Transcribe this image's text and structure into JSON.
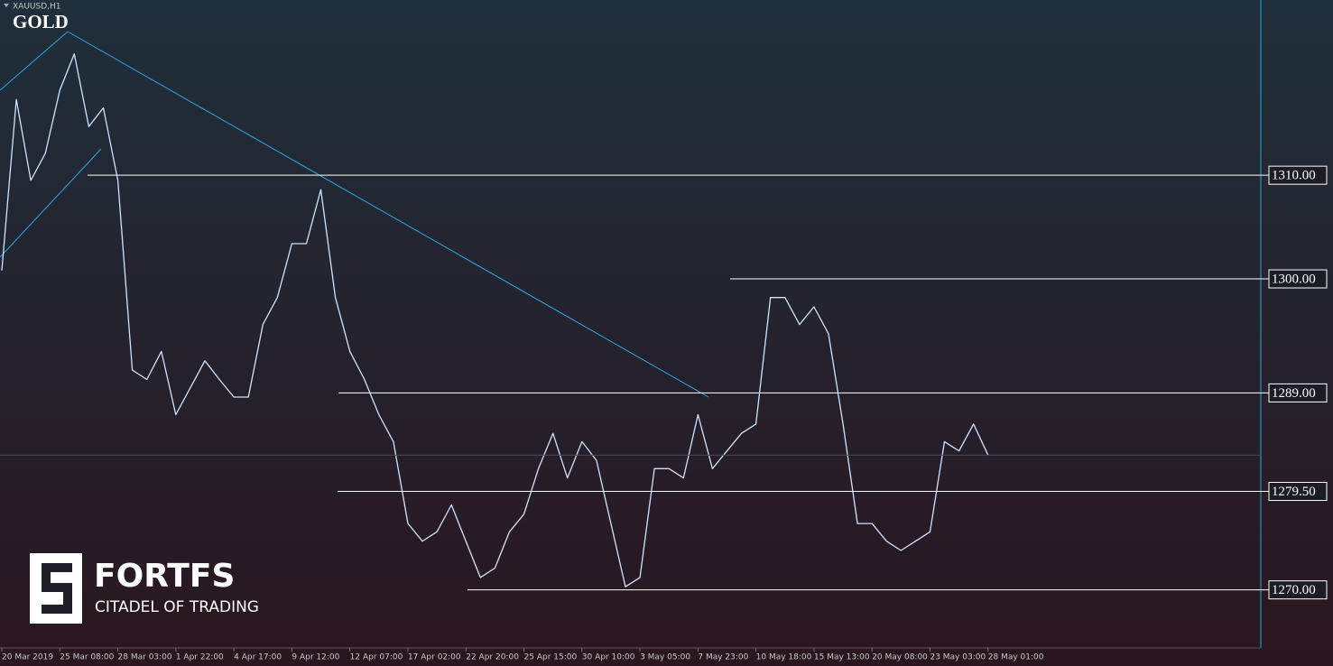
{
  "chart_data": {
    "type": "line",
    "symbol": "XAUUSD,H1",
    "title": "GOLD",
    "brand": "FORTFS",
    "brand_tagline": "CITADEL OF TRADING",
    "categories": [
      "20 Mar 2019",
      null,
      null,
      null,
      "25 Mar 08:00",
      null,
      null,
      null,
      "28 Mar 03:00",
      null,
      null,
      null,
      "1 Apr 22:00",
      null,
      null,
      null,
      "4 Apr 17:00",
      null,
      null,
      null,
      "9 Apr 12:00",
      null,
      null,
      null,
      "12 Apr 07:00",
      null,
      null,
      null,
      "17 Apr 02:00",
      null,
      null,
      null,
      "22 Apr 20:00",
      null,
      null,
      null,
      "25 Apr 15:00",
      null,
      null,
      null,
      "30 Apr 10:00",
      null,
      null,
      null,
      "3 May 05:00",
      null,
      null,
      null,
      "7 May 23:00",
      null,
      null,
      null,
      "10 May 18:00",
      null,
      null,
      null,
      "15 May 13:00",
      null,
      null,
      null,
      "20 May 08:00",
      null,
      null,
      null,
      "23 May 03:00",
      null,
      null,
      null,
      "28 May 01:00"
    ],
    "series": [
      {
        "name": "XAUUSD",
        "color": "#cfe4ff",
        "values": [
          1300.8,
          1317.3,
          1309.5,
          1312.1,
          1318.2,
          1321.7,
          1314.7,
          1316.5,
          1309.5,
          1291.2,
          1290.3,
          1293.0,
          1286.9,
          1289.5,
          1292.1,
          1290.3,
          1288.6,
          1288.6,
          1295.6,
          1298.2,
          1303.4,
          1303.4,
          1308.6,
          1298.2,
          1293.0,
          1290.3,
          1286.9,
          1284.3,
          1276.4,
          1274.7,
          1275.6,
          1278.2,
          1274.7,
          1271.2,
          1272.1,
          1275.6,
          1277.3,
          1281.7,
          1285.1,
          1280.8,
          1284.3,
          1282.5,
          1276.4,
          1270.3,
          1271.2,
          1281.7,
          1281.7,
          1280.8,
          1286.9,
          1281.7,
          1283.4,
          1285.1,
          1286.0,
          1298.2,
          1298.2,
          1295.6,
          1297.3,
          1294.7,
          1286.0,
          1276.4,
          1276.4,
          1274.7,
          1273.8,
          1274.7,
          1275.6,
          1284.3,
          1283.4,
          1286.0,
          1283.0
        ]
      }
    ],
    "ylim": [
      1264.4,
      1326.9
    ],
    "yticks": [
      {
        "value": 1310,
        "label": "1310.00"
      },
      {
        "value": 1300,
        "label": "1300.00"
      },
      {
        "value": 1289,
        "label": "1289.00"
      },
      {
        "value": 1279.5,
        "label": "1279.50"
      },
      {
        "value": 1270,
        "label": "1270.00"
      }
    ],
    "grid": true
  }
}
